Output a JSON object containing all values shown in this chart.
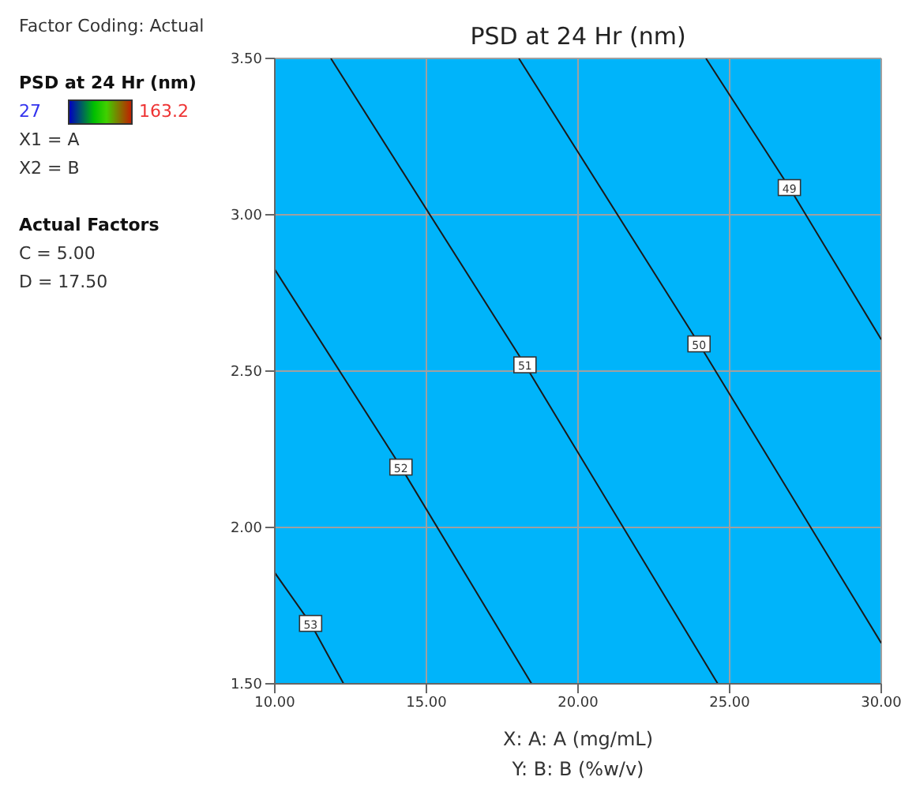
{
  "chart_data": {
    "type": "line",
    "title": "PSD at 24 Hr (nm)",
    "xlabel": "X: A: A (mg/mL)",
    "annotations": [
      "Y: B: B (%w/v)",
      "Factor Coding: Actual",
      "PSD at 24 Hr (nm)",
      "27",
      "163.2",
      "X1 = A",
      "X2 = B",
      "Actual Factors",
      "C = 5.00",
      "D = 17.50"
    ],
    "series": [
      {
        "name": "53",
        "color": "#1a1a1a",
        "x": [
          10,
          11.18,
          12.27
        ],
        "values": [
          1.855,
          1.693,
          1.5
        ]
      },
      {
        "name": "52",
        "color": "#1a1a1a",
        "x": [
          10,
          14.16,
          18.47
        ],
        "values": [
          2.825,
          2.193,
          1.5
        ]
      },
      {
        "name": "51",
        "color": "#1a1a1a",
        "x": [
          11.85,
          18.25,
          24.61
        ],
        "values": [
          3.5,
          2.52,
          1.5
        ]
      },
      {
        "name": "50",
        "color": "#1a1a1a",
        "x": [
          18.05,
          23.99,
          30
        ],
        "values": [
          3.5,
          2.587,
          1.63
        ]
      },
      {
        "name": "49",
        "color": "#1a1a1a",
        "x": [
          24.22,
          26.97,
          30
        ],
        "values": [
          3.5,
          3.087,
          2.601
        ]
      }
    ],
    "bands": [
      {
        "axis": "x",
        "from": 10,
        "to": 30,
        "color": "#00b4fa"
      }
    ],
    "xlim": [
      10,
      30
    ],
    "xticks": [
      {
        "value": 10,
        "label": "10.00"
      },
      {
        "value": 15,
        "label": "15.00"
      },
      {
        "value": 20,
        "label": "20.00"
      },
      {
        "value": 25,
        "label": "25.00"
      },
      {
        "value": 30,
        "label": "30.00"
      }
    ],
    "ylim": [
      1.5,
      3.5
    ],
    "yticks": [
      {
        "value": 1.5,
        "label": "1.50"
      },
      {
        "value": 2,
        "label": "2.00"
      },
      {
        "value": 2.5,
        "label": "2.50"
      },
      {
        "value": 3,
        "label": "3.00"
      },
      {
        "value": 3.5,
        "label": "3.50"
      }
    ],
    "grid": true,
    "marker": "none",
    "line_style": "solid"
  }
}
